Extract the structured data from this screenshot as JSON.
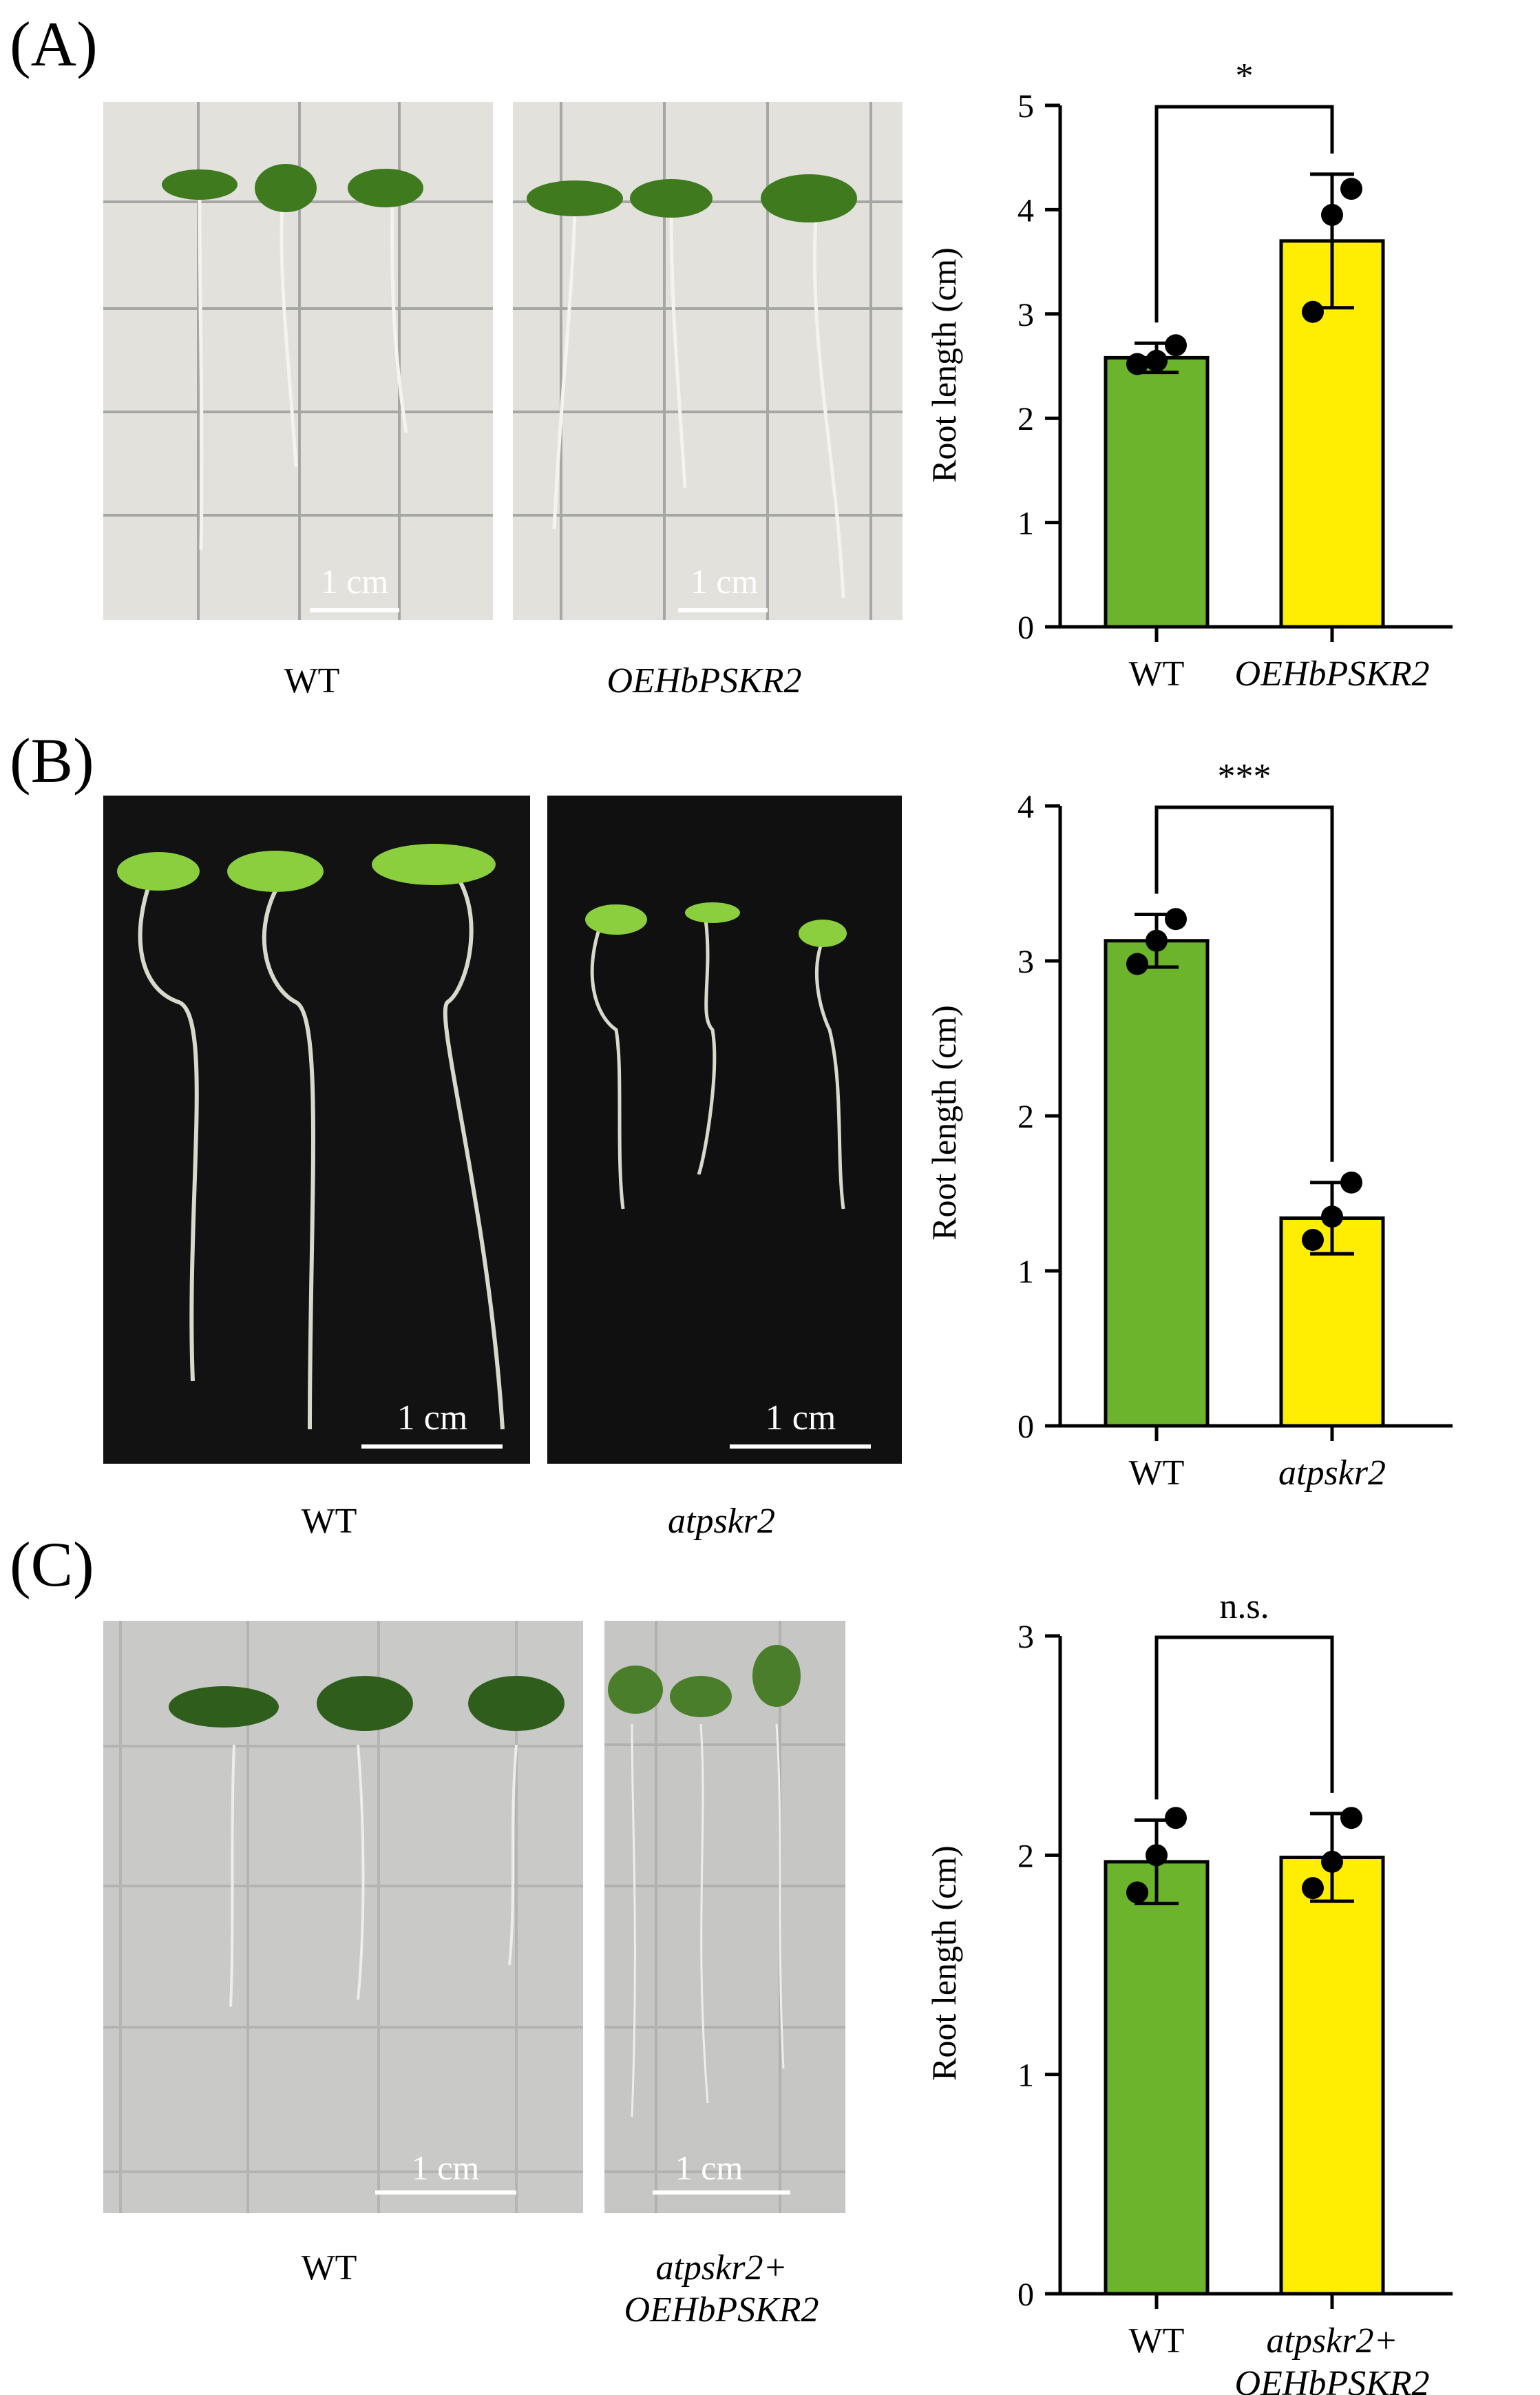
{
  "panels": [
    {
      "label": "(A)",
      "photo_captions": [
        [
          "WT"
        ],
        [
          "OEHbPSKR2"
        ]
      ],
      "caption_italic": [
        false,
        true
      ],
      "scale_bar_text": "1 cm",
      "photo_background": "light-grid",
      "chart_data": {
        "type": "bar",
        "categories": [
          "WT",
          "OEHbPSKR2"
        ],
        "category_italic": [
          false,
          true
        ],
        "values": [
          2.58,
          3.7
        ],
        "error": [
          0.14,
          0.64
        ],
        "points": [
          [
            2.52,
            2.55,
            2.7
          ],
          [
            3.02,
            3.95,
            4.2
          ]
        ],
        "colors": [
          "#6cb42c",
          "#ffee00"
        ],
        "ylabel": "Root length (cm)",
        "ylim": [
          0,
          5
        ],
        "yticks": [
          0,
          1,
          2,
          3,
          4,
          5
        ],
        "significance": "*"
      }
    },
    {
      "label": "(B)",
      "photo_captions": [
        [
          "WT"
        ],
        [
          "atpskr2"
        ]
      ],
      "caption_italic": [
        false,
        true
      ],
      "scale_bar_text": "1 cm",
      "photo_background": "dark",
      "chart_data": {
        "type": "bar",
        "categories": [
          "WT",
          "atpskr2"
        ],
        "category_italic": [
          false,
          true
        ],
        "values": [
          3.13,
          1.34
        ],
        "error": [
          0.17,
          0.23
        ],
        "points": [
          [
            2.98,
            3.13,
            3.27
          ],
          [
            1.2,
            1.35,
            1.57
          ]
        ],
        "colors": [
          "#6cb42c",
          "#ffee00"
        ],
        "ylabel": "Root length (cm)",
        "ylim": [
          0,
          4
        ],
        "yticks": [
          0,
          1,
          2,
          3,
          4
        ],
        "significance": "***"
      }
    },
    {
      "label": "(C)",
      "photo_captions": [
        [
          "WT"
        ],
        [
          "atpskr2+",
          "OEHbPSKR2"
        ]
      ],
      "caption_italic": [
        false,
        true
      ],
      "scale_bar_text": "1 cm",
      "photo_background": "grey-grid",
      "chart_data": {
        "type": "bar",
        "categories": [
          "WT",
          "atpskr2+\nOEHbPSKR2"
        ],
        "category_italic": [
          false,
          true
        ],
        "values": [
          1.97,
          1.99
        ],
        "error": [
          0.19,
          0.2
        ],
        "points": [
          [
            1.83,
            2.0,
            2.17
          ],
          [
            1.85,
            1.97,
            2.17
          ]
        ],
        "colors": [
          "#6cb42c",
          "#ffee00"
        ],
        "ylabel": "Root length (cm)",
        "ylim": [
          0,
          3
        ],
        "yticks": [
          0,
          1,
          2,
          3
        ],
        "significance": "n.s."
      }
    }
  ]
}
